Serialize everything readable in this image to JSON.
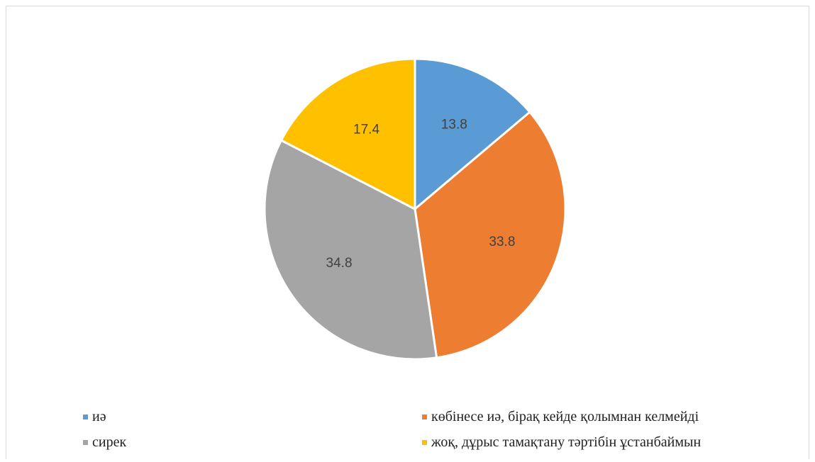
{
  "chart_data": {
    "type": "pie",
    "categories": [
      "иә",
      "көбінесе иә, бірақ кейде қолымнан келмейді",
      "сирек",
      "жоқ, дұрыс тамақтану тәртібін ұстанбаймын"
    ],
    "values": [
      13.8,
      33.8,
      34.8,
      17.4
    ],
    "data_labels": [
      "13.8",
      "33.8",
      "34.8",
      "17.4"
    ],
    "colors": [
      "#5B9BD5",
      "#ED7D31",
      "#A5A5A5",
      "#FFC000"
    ],
    "legend_position": "bottom",
    "start_angle": "top",
    "direction": "clockwise"
  }
}
